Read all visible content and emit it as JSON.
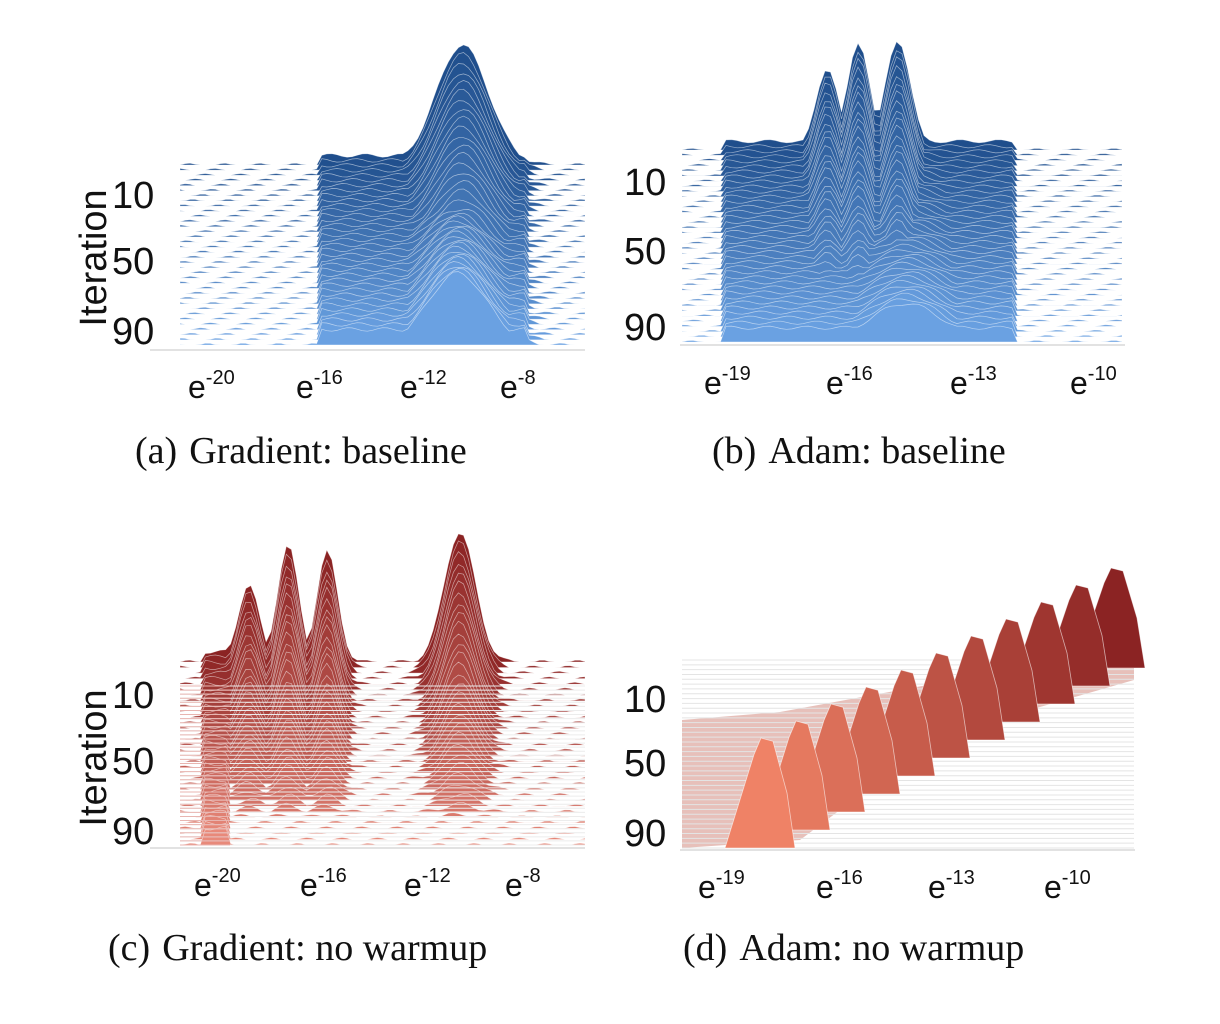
{
  "chart_data": [
    {
      "id": "a",
      "type": "area",
      "caption_letter": "(a)",
      "caption_text": "Gradient: baseline",
      "ylabel": "Iteration",
      "y_ticks": [
        "10",
        "50",
        "90"
      ],
      "x_ticks": [
        {
          "base": "e",
          "exp": "-20"
        },
        {
          "base": "e",
          "exp": "-16"
        },
        {
          "base": "e",
          "exp": "-12"
        },
        {
          "base": "e",
          "exp": "-8"
        }
      ],
      "colors": {
        "back": "#1f4e8c",
        "front": "#6aa1e2"
      },
      "peaks": [
        {
          "center": -10.8,
          "width": 1.6,
          "height": 1.0
        }
      ],
      "front_peaks": [
        {
          "center": -11.0,
          "width": 1.8,
          "height": 0.6
        }
      ],
      "band": [
        -17,
        -8
      ]
    },
    {
      "id": "b",
      "type": "area",
      "caption_letter": "(b)",
      "caption_text": "Adam: baseline",
      "ylabel": "",
      "y_ticks": [
        "10",
        "50",
        "90"
      ],
      "x_ticks": [
        {
          "base": "e",
          "exp": "-19"
        },
        {
          "base": "e",
          "exp": "-16"
        },
        {
          "base": "e",
          "exp": "-13"
        },
        {
          "base": "e",
          "exp": "-10"
        }
      ],
      "colors": {
        "back": "#1f4e8c",
        "front": "#6aa1e2"
      },
      "peaks": [
        {
          "center": -16.8,
          "width": 0.4,
          "height": 0.75
        },
        {
          "center": -16.0,
          "width": 0.4,
          "height": 0.98
        },
        {
          "center": -15.0,
          "width": 0.45,
          "height": 1.0
        }
      ],
      "front_peaks": [
        {
          "center": -14.8,
          "width": 1.3,
          "height": 0.35
        }
      ],
      "band": [
        -19.5,
        -12
      ]
    },
    {
      "id": "c",
      "type": "area",
      "caption_letter": "(c)",
      "caption_text": "Gradient: no warmup",
      "ylabel": "Iteration",
      "y_ticks": [
        "10",
        "50",
        "90"
      ],
      "x_ticks": [
        {
          "base": "e",
          "exp": "-20"
        },
        {
          "base": "e",
          "exp": "-16"
        },
        {
          "base": "e",
          "exp": "-12"
        },
        {
          "base": "e",
          "exp": "-8"
        }
      ],
      "colors": {
        "back": "#8b2323",
        "front": "#e8897a"
      },
      "peaks": [
        {
          "center": -19.2,
          "width": 0.6,
          "height": 0.6
        },
        {
          "center": -17.6,
          "width": 0.6,
          "height": 0.9
        },
        {
          "center": -16.0,
          "width": 0.6,
          "height": 0.85
        },
        {
          "center": -10.6,
          "width": 0.9,
          "height": 1.0
        }
      ],
      "front_peaks": [],
      "band": [
        -21,
        -20
      ]
    },
    {
      "id": "d",
      "type": "area",
      "caption_letter": "(d)",
      "caption_text": "Adam: no warmup",
      "ylabel": "",
      "y_ticks": [
        "10",
        "50",
        "90"
      ],
      "x_ticks": [
        {
          "base": "e",
          "exp": "-19"
        },
        {
          "base": "e",
          "exp": "-16"
        },
        {
          "base": "e",
          "exp": "-13"
        },
        {
          "base": "e",
          "exp": "-10"
        }
      ],
      "colors": {
        "back": "#8b2323",
        "front": "#ec7a5c"
      },
      "peaks": [],
      "front_peaks": [],
      "band": [
        -20,
        -13
      ]
    }
  ]
}
